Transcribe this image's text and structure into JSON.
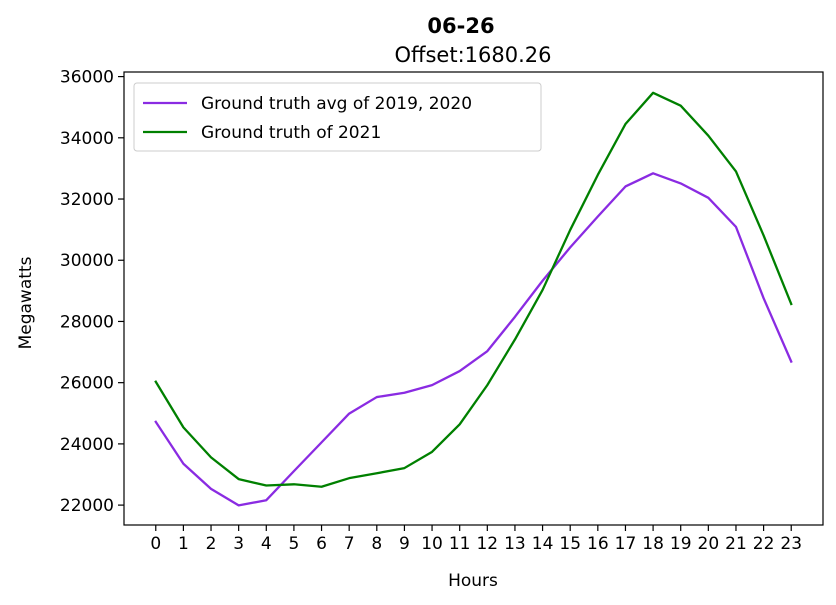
{
  "chart_data": {
    "type": "line",
    "title": "06-26",
    "subtitle": "Offset:1680.26",
    "xlabel": "Hours",
    "ylabel": "Megawatts",
    "x": [
      0,
      1,
      2,
      3,
      4,
      5,
      6,
      7,
      8,
      9,
      10,
      11,
      12,
      13,
      14,
      15,
      16,
      17,
      18,
      19,
      20,
      21,
      22,
      23
    ],
    "xlim": [
      -1.15,
      24.15
    ],
    "ylim": [
      21350,
      36150
    ],
    "yticks": [
      22000,
      24000,
      26000,
      28000,
      30000,
      32000,
      34000,
      36000
    ],
    "grid": false,
    "legend_position": "top-left",
    "series": [
      {
        "name": "Ground truth avg of 2019, 2020",
        "color": "#8a2be2",
        "values": [
          24720,
          23350,
          22530,
          21990,
          22160,
          23110,
          24050,
          24990,
          25530,
          25670,
          25920,
          26380,
          27030,
          28150,
          29330,
          30420,
          31430,
          32410,
          32840,
          32510,
          32040,
          31090,
          28760,
          26690
        ]
      },
      {
        "name": "Ground truth of 2021",
        "color": "#008000",
        "values": [
          26030,
          24540,
          23560,
          22850,
          22640,
          22680,
          22600,
          22880,
          23040,
          23210,
          23740,
          24640,
          25920,
          27410,
          29030,
          30990,
          32790,
          34450,
          35470,
          35050,
          34070,
          32900,
          30810,
          28570
        ]
      }
    ]
  }
}
